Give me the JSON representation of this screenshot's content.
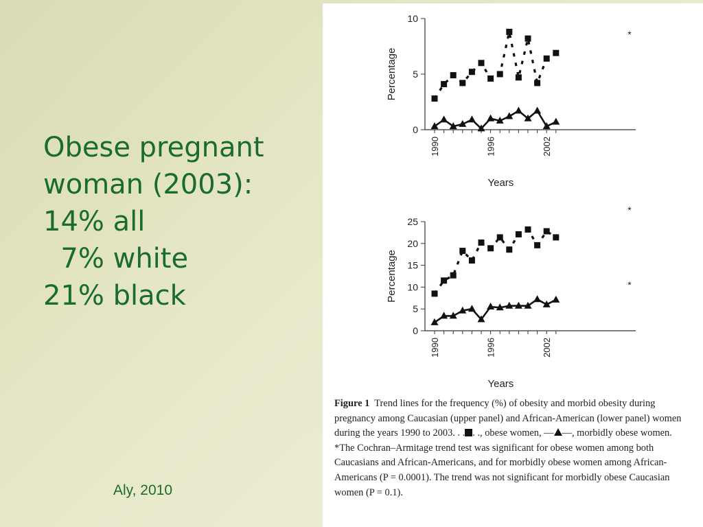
{
  "slide": {
    "bullets": [
      "Obese pregnant",
      "woman (2003):",
      "14% all",
      "  7% white",
      "21% black"
    ],
    "citation": "Aly, 2010"
  },
  "colors": {
    "text_green": "#1a6b2e",
    "figure_ink": "#111111"
  },
  "chart_data": [
    {
      "type": "line",
      "panel": "upper",
      "x": [
        1990,
        1991,
        1992,
        1993,
        1994,
        1995,
        1996,
        1997,
        1998,
        1999,
        2000,
        2001,
        2002,
        2003
      ],
      "x_tick_labels": [
        "1990",
        "1996",
        "2002"
      ],
      "ylim": [
        0,
        10
      ],
      "y_ticks": [
        "0",
        "5",
        "10"
      ],
      "xlabel": "Years",
      "ylabel": "Percentage",
      "series": [
        {
          "style": "dotted",
          "marker": "square",
          "values": [
            2.8,
            4.1,
            4.9,
            4.2,
            5.2,
            6.0,
            4.6,
            5.0,
            8.8,
            4.7,
            8.2,
            4.2,
            6.4,
            6.9
          ]
        },
        {
          "style": "solid",
          "marker": "triangle",
          "values": [
            0.3,
            0.9,
            0.3,
            0.5,
            0.9,
            0.1,
            1.0,
            0.8,
            1.2,
            1.7,
            1.0,
            1.7,
            0.3,
            0.7
          ]
        }
      ],
      "annotations": [
        "*"
      ]
    },
    {
      "type": "line",
      "panel": "lower",
      "x": [
        1990,
        1991,
        1992,
        1993,
        1994,
        1995,
        1996,
        1997,
        1998,
        1999,
        2000,
        2001,
        2002,
        2003
      ],
      "x_tick_labels": [
        "1990",
        "1996",
        "2002"
      ],
      "ylim": [
        0,
        25
      ],
      "y_ticks": [
        "0",
        "5",
        "10",
        "15",
        "20",
        "25"
      ],
      "xlabel": "Years",
      "ylabel": "Percentage",
      "series": [
        {
          "style": "dotted",
          "marker": "square",
          "values": [
            8.5,
            11.5,
            12.7,
            18.3,
            16.1,
            20.2,
            18.9,
            21.4,
            18.6,
            22.1,
            23.2,
            19.6,
            22.8,
            21.4
          ]
        },
        {
          "style": "solid",
          "marker": "triangle",
          "values": [
            1.9,
            3.4,
            3.4,
            4.6,
            5.0,
            2.6,
            5.5,
            5.3,
            5.7,
            5.7,
            5.7,
            7.2,
            6.0,
            7.1
          ]
        }
      ],
      "annotations": [
        "*",
        "*"
      ]
    }
  ],
  "caption": {
    "fig_label": "Figure 1",
    "line1_text": "Trend lines for the frequency (%) of obesity and morbid obesity during pregnancy among Caucasian (upper panel) and African-American (lower panel) women during the years 1990 to 2003. . .",
    "line1_mid": ". ., obese women, —",
    "line1_end": "—, morbidly obese women.",
    "note": "*The Cochran–Armitage trend test was significant for obese women among both Caucasians and African-Americans, and for morbidly obese women among African-Americans (P = 0.0001). The trend was not significant for morbidly obese Caucasian women (P = 0.1)."
  }
}
